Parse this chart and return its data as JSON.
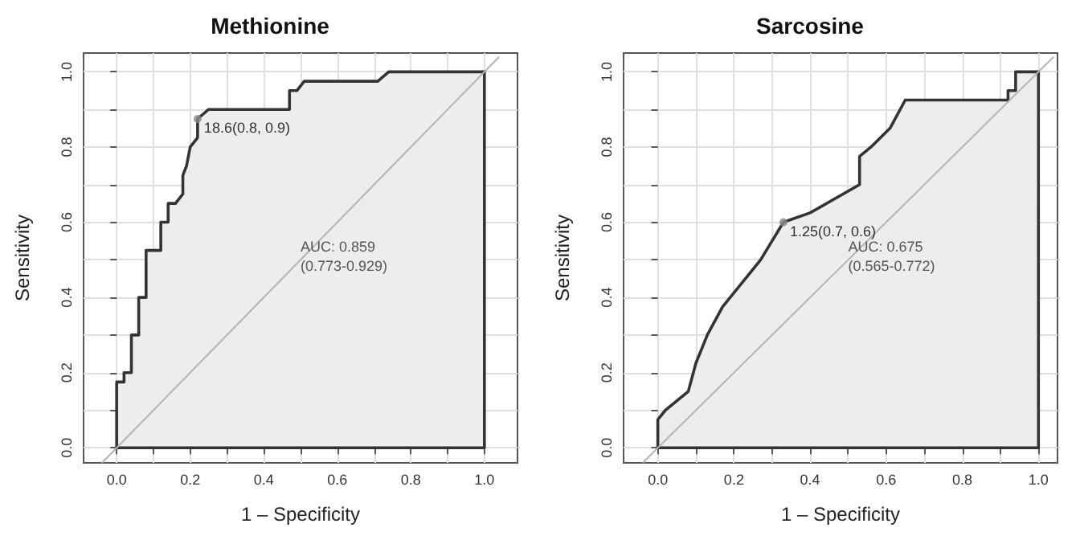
{
  "chart_data": [
    {
      "type": "area",
      "title": "Methionine",
      "xlabel": "1 – Specificity",
      "ylabel": "Sensitivity",
      "xlim": [
        -0.09,
        1.09
      ],
      "ylim": [
        -0.04,
        1.05
      ],
      "xticks": [
        {
          "value": 0,
          "label": "0.0"
        },
        {
          "value": 0.1,
          "label": null
        },
        {
          "value": 0.2,
          "label": "0.2"
        },
        {
          "value": 0.3,
          "label": null
        },
        {
          "value": 0.4,
          "label": "0.4"
        },
        {
          "value": 0.5,
          "label": null
        },
        {
          "value": 0.6,
          "label": "0.6"
        },
        {
          "value": 0.7,
          "label": null
        },
        {
          "value": 0.8,
          "label": "0.8"
        },
        {
          "value": 0.9,
          "label": null
        },
        {
          "value": 1,
          "label": "1.0"
        }
      ],
      "yticks": [
        {
          "value": 0,
          "label": "0.0"
        },
        {
          "value": 0.1,
          "label": null
        },
        {
          "value": 0.2,
          "label": "0.2"
        },
        {
          "value": 0.3,
          "label": null
        },
        {
          "value": 0.4,
          "label": "0.4"
        },
        {
          "value": 0.5,
          "label": null
        },
        {
          "value": 0.6,
          "label": "0.6"
        },
        {
          "value": 0.7,
          "label": null
        },
        {
          "value": 0.8,
          "label": "0.8"
        },
        {
          "value": 0.9,
          "label": null
        },
        {
          "value": 1,
          "label": "1.0"
        }
      ],
      "grid": true,
      "series": [
        {
          "type": "area",
          "color": "#333333",
          "x": [
            0,
            0,
            0.02,
            0.02,
            0.04,
            0.04,
            0.06,
            0.06,
            0.08,
            0.08,
            0.12,
            0.12,
            0.14,
            0.14,
            0.16,
            0.18,
            0.18,
            0.19,
            0.2,
            0.22,
            0.22,
            0.25,
            0.47,
            0.47,
            0.49,
            0.51,
            0.71,
            0.74,
            1,
            1,
            0
          ],
          "values": [
            0,
            0.175,
            0.175,
            0.2,
            0.2,
            0.3,
            0.3,
            0.4,
            0.4,
            0.525,
            0.525,
            0.6,
            0.6,
            0.65,
            0.65,
            0.675,
            0.725,
            0.75,
            0.8,
            0.825,
            0.875,
            0.9,
            0.9,
            0.95,
            0.95,
            0.975,
            0.975,
            1,
            1,
            0,
            0
          ]
        },
        {
          "type": "line",
          "color": "#b4b4b4",
          "x": [
            -0.04,
            1.04
          ],
          "values": [
            -0.04,
            1.04
          ]
        },
        {
          "type": "scatter",
          "color": "#888888",
          "x": [
            0.22
          ],
          "values": [
            0.875
          ]
        }
      ],
      "annotations": [
        {
          "text": "18.6(0.8, 0.9)",
          "x": 0.22,
          "y": 0.875
        },
        "AUC: 0.859\n(0.773-0.929)"
      ]
    },
    {
      "type": "area",
      "title": "Sarcosine",
      "xlabel": "1 – Specificity",
      "ylabel": "Sensitivity",
      "xlim": [
        -0.09,
        1.05
      ],
      "ylim": [
        -0.04,
        1.05
      ],
      "xticks": [
        {
          "value": 0,
          "label": "0.0"
        },
        {
          "value": 0.1,
          "label": null
        },
        {
          "value": 0.2,
          "label": "0.2"
        },
        {
          "value": 0.3,
          "label": null
        },
        {
          "value": 0.4,
          "label": "0.4"
        },
        {
          "value": 0.5,
          "label": null
        },
        {
          "value": 0.6,
          "label": "0.6"
        },
        {
          "value": 0.7,
          "label": null
        },
        {
          "value": 0.8,
          "label": "0.8"
        },
        {
          "value": 0.9,
          "label": null
        },
        {
          "value": 1,
          "label": "1.0"
        }
      ],
      "yticks": [
        {
          "value": 0,
          "label": "0.0"
        },
        {
          "value": 0.1,
          "label": null
        },
        {
          "value": 0.2,
          "label": "0.2"
        },
        {
          "value": 0.3,
          "label": null
        },
        {
          "value": 0.4,
          "label": "0.4"
        },
        {
          "value": 0.5,
          "label": null
        },
        {
          "value": 0.6,
          "label": "0.6"
        },
        {
          "value": 0.7,
          "label": null
        },
        {
          "value": 0.8,
          "label": "0.8"
        },
        {
          "value": 0.9,
          "label": null
        },
        {
          "value": 1,
          "label": "1.0"
        }
      ],
      "grid": true,
      "series": [
        {
          "type": "area",
          "color": "#333333",
          "x": [
            0,
            0,
            0.02,
            0.08,
            0.1,
            0.13,
            0.17,
            0.25,
            0.27,
            0.33,
            0.4,
            0.53,
            0.53,
            0.56,
            0.61,
            0.65,
            0.92,
            0.92,
            0.94,
            0.94,
            1,
            1,
            0
          ],
          "values": [
            0,
            0.075,
            0.1,
            0.15,
            0.225,
            0.3,
            0.375,
            0.475,
            0.5,
            0.6,
            0.625,
            0.7,
            0.775,
            0.8,
            0.85,
            0.925,
            0.925,
            0.95,
            0.95,
            1,
            1,
            0,
            0
          ]
        },
        {
          "type": "line",
          "color": "#b4b4b4",
          "x": [
            -0.04,
            1.04
          ],
          "values": [
            -0.04,
            1.04
          ]
        },
        {
          "type": "scatter",
          "color": "#888888",
          "x": [
            0.33
          ],
          "values": [
            0.6
          ]
        }
      ],
      "annotations": [
        {
          "text": "1.25(0.7, 0.6)",
          "x": 0.33,
          "y": 0.6
        },
        "AUC: 0.675\n(0.565-0.772)"
      ]
    }
  ]
}
